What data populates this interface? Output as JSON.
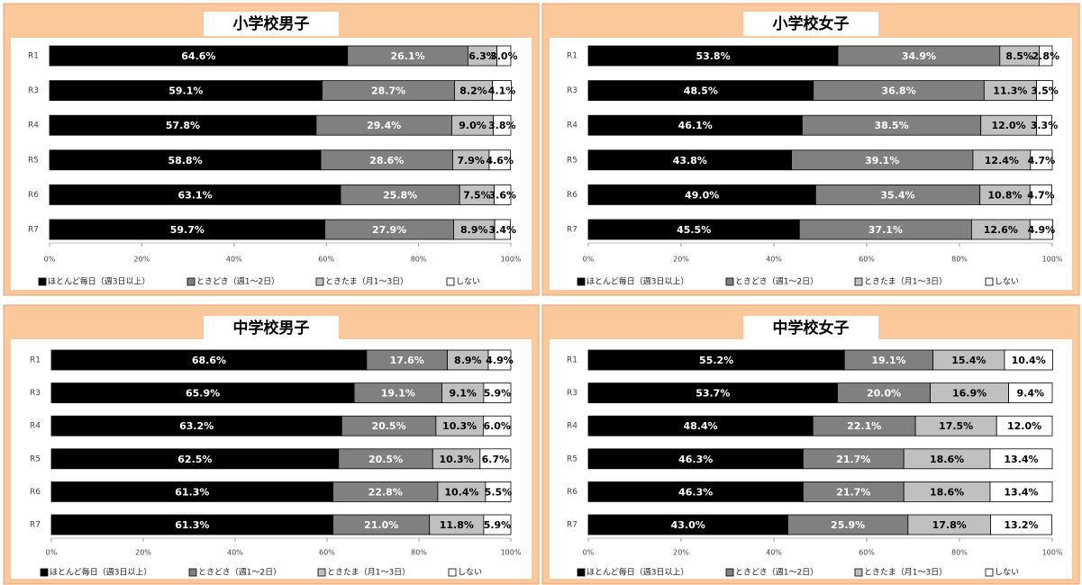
{
  "chart_data": [
    {
      "type": "stacked-barh",
      "title": "小学校男子",
      "categories": [
        "R1",
        "R3",
        "R4",
        "R5",
        "R6",
        "R7"
      ],
      "series": [
        {
          "name": "ほとんど毎日（週3日以上）",
          "color": "#000000",
          "values": [
            64.6,
            59.1,
            57.8,
            58.8,
            63.1,
            59.7
          ],
          "value_labels": [
            "64.6%",
            "59.1%",
            "57.8%",
            "58.8%",
            "63.1%",
            "59.7%"
          ]
        },
        {
          "name": "ときどき（週1～2日）",
          "color": "#808080",
          "values": [
            26.1,
            28.7,
            29.4,
            28.6,
            25.8,
            27.9
          ],
          "value_labels": [
            "26.1%",
            "28.7%",
            "29.4%",
            "28.6%",
            "25.8%",
            "27.9%"
          ]
        },
        {
          "name": "ときたま（月1～3日）",
          "color": "#c0c0c0",
          "values": [
            6.3,
            8.2,
            9.0,
            7.9,
            7.5,
            8.9
          ],
          "value_labels": [
            "6.3%",
            "8.2%",
            "9.0%",
            "7.9%",
            "7.5%",
            "8.9%"
          ]
        },
        {
          "name": "しない",
          "color": "#ffffff",
          "values": [
            3.0,
            4.1,
            3.8,
            4.6,
            3.6,
            3.4
          ],
          "value_labels": [
            "3.0%",
            "4.1%",
            "3.8%",
            "4.6%",
            "3.6%",
            "3.4%"
          ]
        }
      ],
      "xlim": [
        0,
        100
      ],
      "xticks": [
        {
          "value": 0,
          "label": "0%"
        },
        {
          "value": 20,
          "label": "20%"
        },
        {
          "value": 40,
          "label": "40%"
        },
        {
          "value": 60,
          "label": "60%"
        },
        {
          "value": 80,
          "label": "80%"
        },
        {
          "value": 100,
          "label": "100%"
        }
      ],
      "grid": false,
      "legend": "bottom"
    },
    {
      "type": "stacked-barh",
      "title": "小学校女子",
      "categories": [
        "R1",
        "R3",
        "R4",
        "R5",
        "R6",
        "R7"
      ],
      "series": [
        {
          "name": "ほとんど毎日（週3日以上）",
          "color": "#000000",
          "values": [
            53.8,
            48.5,
            46.1,
            43.8,
            49.0,
            45.5
          ],
          "value_labels": [
            "53.8%",
            "48.5%",
            "46.1%",
            "43.8%",
            "49.0%",
            "45.5%"
          ]
        },
        {
          "name": "ときどき（週1～2日）",
          "color": "#808080",
          "values": [
            34.9,
            36.8,
            38.5,
            39.1,
            35.4,
            37.1
          ],
          "value_labels": [
            "34.9%",
            "36.8%",
            "38.5%",
            "39.1%",
            "35.4%",
            "37.1%"
          ]
        },
        {
          "name": "ときたま（月1～3日）",
          "color": "#c0c0c0",
          "values": [
            8.5,
            11.3,
            12.0,
            12.4,
            10.8,
            12.6
          ],
          "value_labels": [
            "8.5%",
            "11.3%",
            "12.0%",
            "12.4%",
            "10.8%",
            "12.6%"
          ]
        },
        {
          "name": "しない",
          "color": "#ffffff",
          "values": [
            2.8,
            3.5,
            3.3,
            4.7,
            4.7,
            4.9
          ],
          "value_labels": [
            "2.8%",
            "3.5%",
            "3.3%",
            "4.7%",
            "4.7%",
            "4.9%"
          ]
        }
      ],
      "xlim": [
        0,
        100
      ],
      "xticks": [
        {
          "value": 0,
          "label": "0%"
        },
        {
          "value": 20,
          "label": "20%"
        },
        {
          "value": 40,
          "label": "40%"
        },
        {
          "value": 60,
          "label": "60%"
        },
        {
          "value": 80,
          "label": "80%"
        },
        {
          "value": 100,
          "label": "100%"
        }
      ],
      "grid": false,
      "legend": "bottom"
    },
    {
      "type": "stacked-barh",
      "title": "中学校男子",
      "categories": [
        "R1",
        "R3",
        "R4",
        "R5",
        "R6",
        "R7"
      ],
      "series": [
        {
          "name": "ほとんど毎日（週3日以上）",
          "color": "#000000",
          "values": [
            68.6,
            65.9,
            63.2,
            62.5,
            61.3,
            61.3
          ],
          "value_labels": [
            "68.6%",
            "65.9%",
            "63.2%",
            "62.5%",
            "61.3%",
            "61.3%"
          ]
        },
        {
          "name": "ときどき（週1～2日）",
          "color": "#808080",
          "values": [
            17.6,
            19.1,
            20.5,
            20.5,
            22.8,
            21.0
          ],
          "value_labels": [
            "17.6%",
            "19.1%",
            "20.5%",
            "20.5%",
            "22.8%",
            "21.0%"
          ]
        },
        {
          "name": "ときたま（月1～3日）",
          "color": "#c0c0c0",
          "values": [
            8.9,
            9.1,
            10.3,
            10.3,
            10.4,
            11.8
          ],
          "value_labels": [
            "8.9%",
            "9.1%",
            "10.3%",
            "10.3%",
            "10.4%",
            "11.8%"
          ]
        },
        {
          "name": "しない",
          "color": "#ffffff",
          "values": [
            4.9,
            5.9,
            6.0,
            6.7,
            5.5,
            5.9
          ],
          "value_labels": [
            "4.9%",
            "5.9%",
            "6.0%",
            "6.7%",
            "5.5%",
            "5.9%"
          ]
        }
      ],
      "xlim": [
        0,
        100
      ],
      "xticks": [
        {
          "value": 0,
          "label": "0%"
        },
        {
          "value": 20,
          "label": "20%"
        },
        {
          "value": 40,
          "label": "40%"
        },
        {
          "value": 60,
          "label": "60%"
        },
        {
          "value": 80,
          "label": "80%"
        },
        {
          "value": 100,
          "label": "100%"
        }
      ],
      "grid": false,
      "legend": "bottom"
    },
    {
      "type": "stacked-barh",
      "title": "中学校女子",
      "categories": [
        "R1",
        "R3",
        "R4",
        "R5",
        "R6",
        "R7"
      ],
      "series": [
        {
          "name": "ほとんど毎日（週3日以上）",
          "color": "#000000",
          "values": [
            55.2,
            53.7,
            48.4,
            46.3,
            46.3,
            43.0
          ],
          "value_labels": [
            "55.2%",
            "53.7%",
            "48.4%",
            "46.3%",
            "46.3%",
            "43.0%"
          ]
        },
        {
          "name": "ときどき（週1～2日）",
          "color": "#808080",
          "values": [
            19.1,
            20.0,
            22.1,
            21.7,
            21.7,
            25.9
          ],
          "value_labels": [
            "19.1%",
            "20.0%",
            "22.1%",
            "21.7%",
            "21.7%",
            "25.9%"
          ]
        },
        {
          "name": "ときたま（月1～3日）",
          "color": "#c0c0c0",
          "values": [
            15.4,
            16.9,
            17.5,
            18.6,
            18.6,
            17.8
          ],
          "value_labels": [
            "15.4%",
            "16.9%",
            "17.5%",
            "18.6%",
            "18.6%",
            "17.8%"
          ]
        },
        {
          "name": "しない",
          "color": "#ffffff",
          "values": [
            10.4,
            9.4,
            12.0,
            13.4,
            13.4,
            13.2
          ],
          "value_labels": [
            "10.4%",
            "9.4%",
            "12.0%",
            "13.4%",
            "13.4%",
            "13.2%"
          ]
        }
      ],
      "xlim": [
        0,
        100
      ],
      "xticks": [
        {
          "value": 0,
          "label": "0%"
        },
        {
          "value": 20,
          "label": "20%"
        },
        {
          "value": 40,
          "label": "40%"
        },
        {
          "value": 60,
          "label": "60%"
        },
        {
          "value": 80,
          "label": "80%"
        },
        {
          "value": 100,
          "label": "100%"
        }
      ],
      "grid": false,
      "legend": "bottom"
    }
  ]
}
